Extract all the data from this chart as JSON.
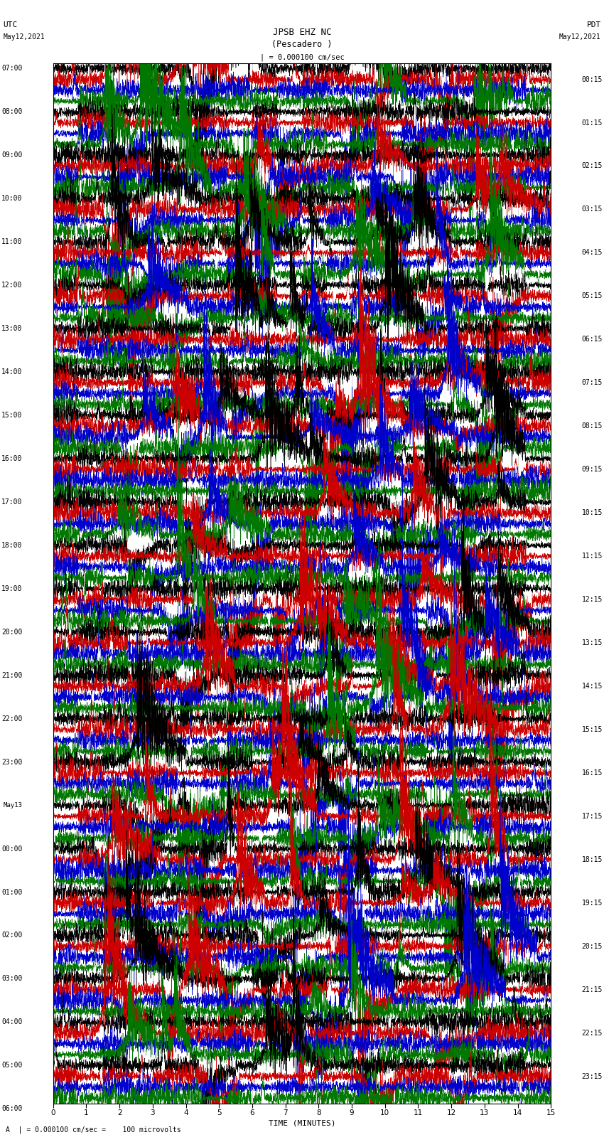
{
  "title_line1": "JPSB EHZ NC",
  "title_line2": "(Pescadero )",
  "scale_text": "| = 0.000100 cm/sec",
  "footer_text": "A  | = 0.000100 cm/sec =    100 microvolts",
  "xlabel": "TIME (MINUTES)",
  "bg_color": "#ffffff",
  "trace_colors": [
    "#000000",
    "#cc0000",
    "#0000cc",
    "#007700"
  ],
  "num_rows": 96,
  "utc_labels": [
    "07:00",
    "08:00",
    "09:00",
    "10:00",
    "11:00",
    "12:00",
    "13:00",
    "14:00",
    "15:00",
    "16:00",
    "17:00",
    "18:00",
    "19:00",
    "20:00",
    "21:00",
    "22:00",
    "23:00",
    "May13",
    "00:00",
    "01:00",
    "02:00",
    "03:00",
    "04:00",
    "05:00",
    "06:00"
  ],
  "pdt_labels": [
    "00:15",
    "01:15",
    "02:15",
    "03:15",
    "04:15",
    "05:15",
    "06:15",
    "07:15",
    "08:15",
    "09:15",
    "10:15",
    "11:15",
    "12:15",
    "13:15",
    "14:15",
    "15:15",
    "16:15",
    "17:15",
    "18:15",
    "19:15",
    "20:15",
    "21:15",
    "22:15",
    "23:15"
  ],
  "fig_width": 8.5,
  "fig_height": 16.13,
  "dpi": 100
}
